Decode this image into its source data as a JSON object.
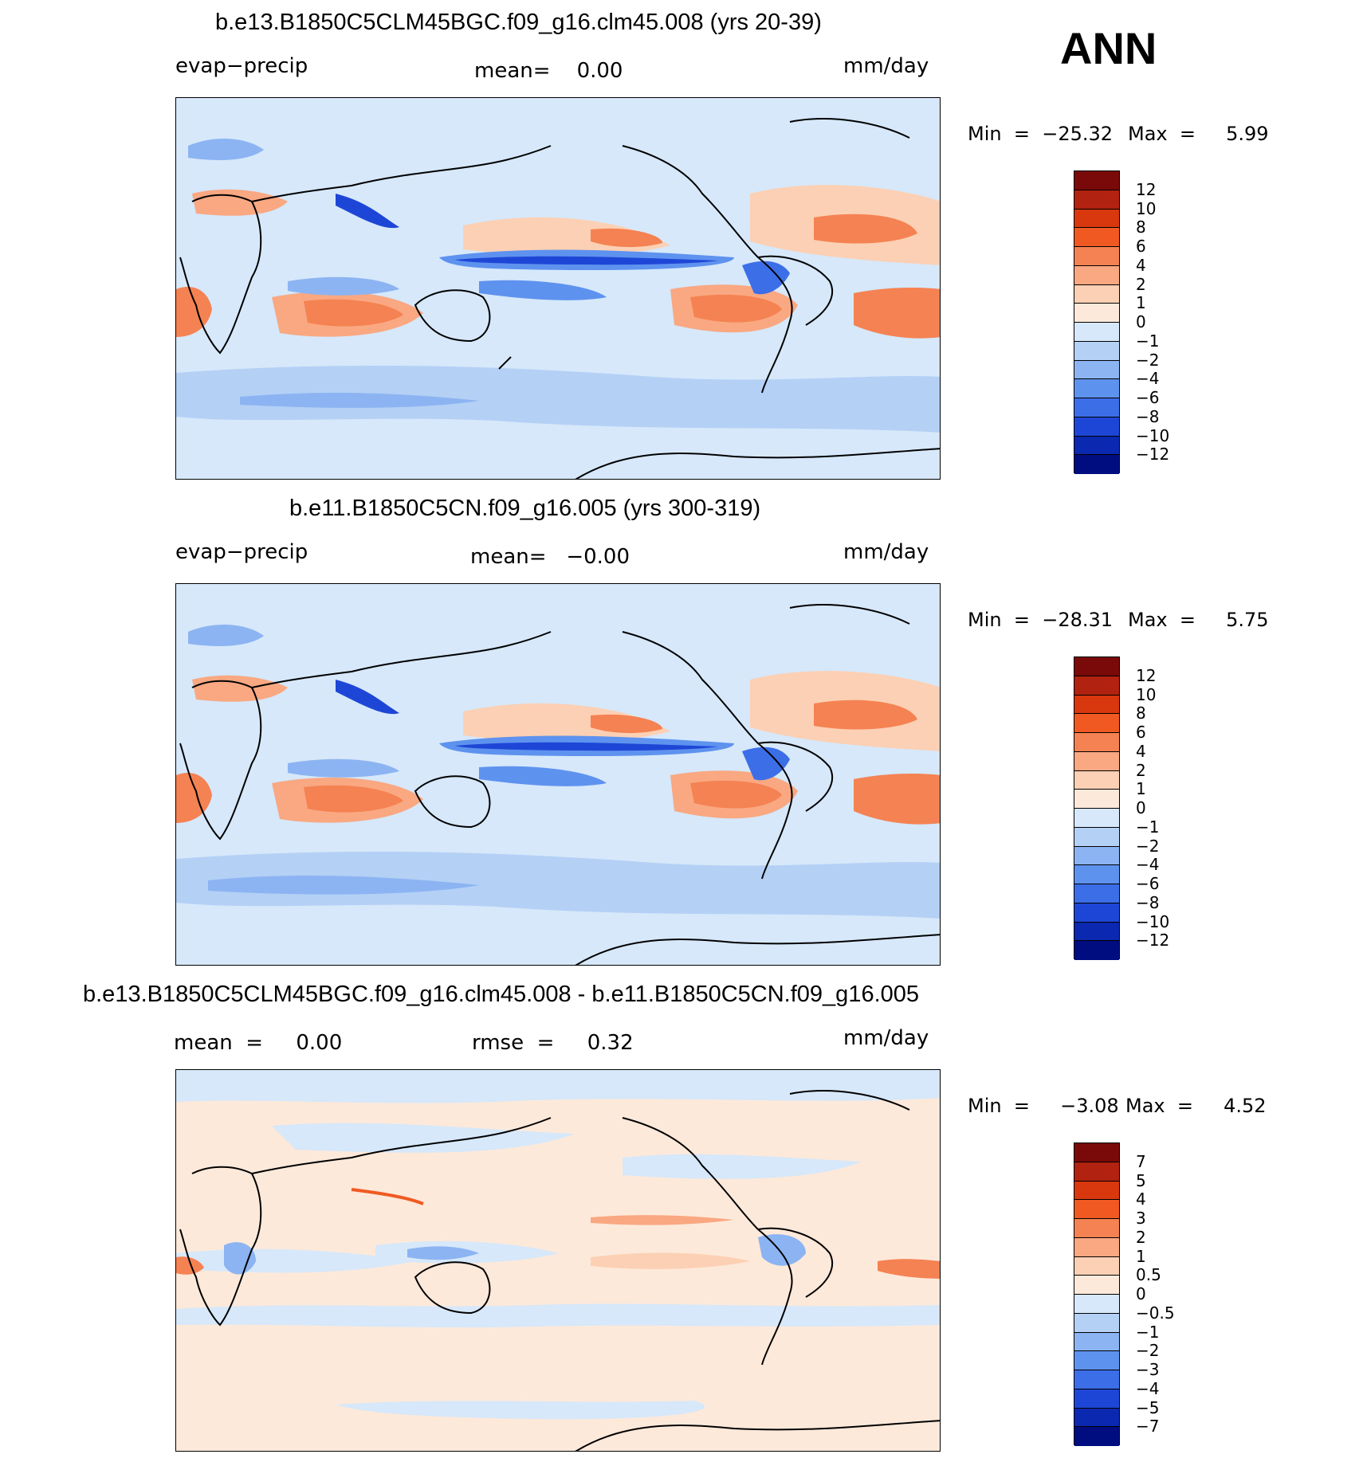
{
  "season": "ANN",
  "units": "mm/day",
  "panels": [
    {
      "title": "b.e13.B1850C5CLM45BGC.f09_g16.clm45.008 (yrs 20-39)",
      "variable": "evap−precip",
      "mean_text": "mean=    0.00",
      "min_text": "Min  =  −25.32",
      "max_text": "Max  =     5.99"
    },
    {
      "title": "b.e11.B1850C5CN.f09_g16.005 (yrs 300-319)",
      "variable": "evap−precip",
      "mean_text": "mean=   −0.00",
      "min_text": "Min  =  −28.31",
      "max_text": "Max  =     5.75"
    },
    {
      "title": "b.e13.B1850C5CLM45BGC.f09_g16.clm45.008 - b.e11.B1850C5CN.f09_g16.005",
      "mean_text": "mean  =     0.00",
      "rmse_text": "rmse  =     0.32",
      "min_text": "Min  =     −3.08",
      "max_text": "Max  =     4.52"
    }
  ],
  "colorbar_main": {
    "levels": [
      "12",
      "10",
      "8",
      "6",
      "4",
      "2",
      "1",
      "0",
      "−1",
      "−2",
      "−4",
      "−6",
      "−8",
      "−10",
      "−12"
    ],
    "colors": [
      "#7a0a0a",
      "#b22210",
      "#d9380e",
      "#f05a22",
      "#f58252",
      "#f9a882",
      "#fcd0b4",
      "#fde9da",
      "#d6e8fa",
      "#b4d0f5",
      "#8cb4f2",
      "#5e92ef",
      "#3c6ee8",
      "#1e46d6",
      "#0a28b0",
      "#000d80"
    ]
  },
  "colorbar_diff": {
    "levels": [
      "7",
      "5",
      "4",
      "3",
      "2",
      "1",
      "0.5",
      "0",
      "−0.5",
      "−1",
      "−2",
      "−3",
      "−4",
      "−5",
      "−7"
    ],
    "colors": [
      "#7a0a0a",
      "#b22210",
      "#d9380e",
      "#f05a22",
      "#f58252",
      "#f9a882",
      "#fcd0b4",
      "#fde9da",
      "#d6e8fa",
      "#b4d0f5",
      "#8cb4f2",
      "#5e92ef",
      "#3c6ee8",
      "#1e46d6",
      "#0a28b0",
      "#000d80"
    ]
  }
}
